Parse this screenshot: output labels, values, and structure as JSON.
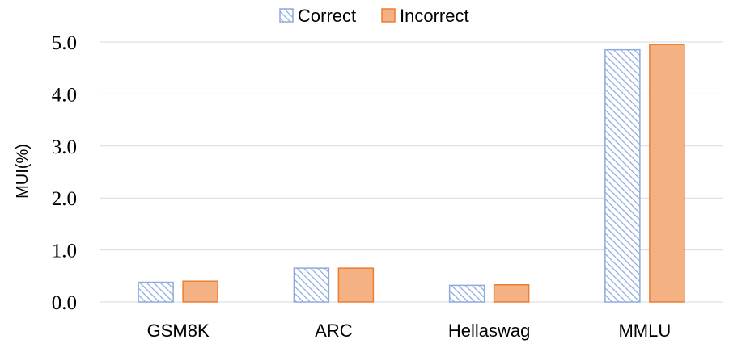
{
  "chart_data": {
    "type": "bar",
    "title": "",
    "xlabel": "",
    "ylabel": "MUI(%)",
    "ylim": [
      0,
      5.0
    ],
    "yticks": [
      "0.0",
      "1.0",
      "2.0",
      "3.0",
      "4.0",
      "5.0"
    ],
    "grid": true,
    "legend_position": "top-center",
    "categories": [
      "GSM8K",
      "ARC",
      "Hellaswag",
      "MMLU"
    ],
    "series": [
      {
        "name": "Correct",
        "values": [
          0.38,
          0.65,
          0.32,
          4.85
        ],
        "color": "#8faadc",
        "pattern": "hatched"
      },
      {
        "name": "Incorrect",
        "values": [
          0.4,
          0.65,
          0.33,
          4.95
        ],
        "color": "#f4b183",
        "border_color": "#ed7d31",
        "pattern": "solid"
      }
    ]
  }
}
